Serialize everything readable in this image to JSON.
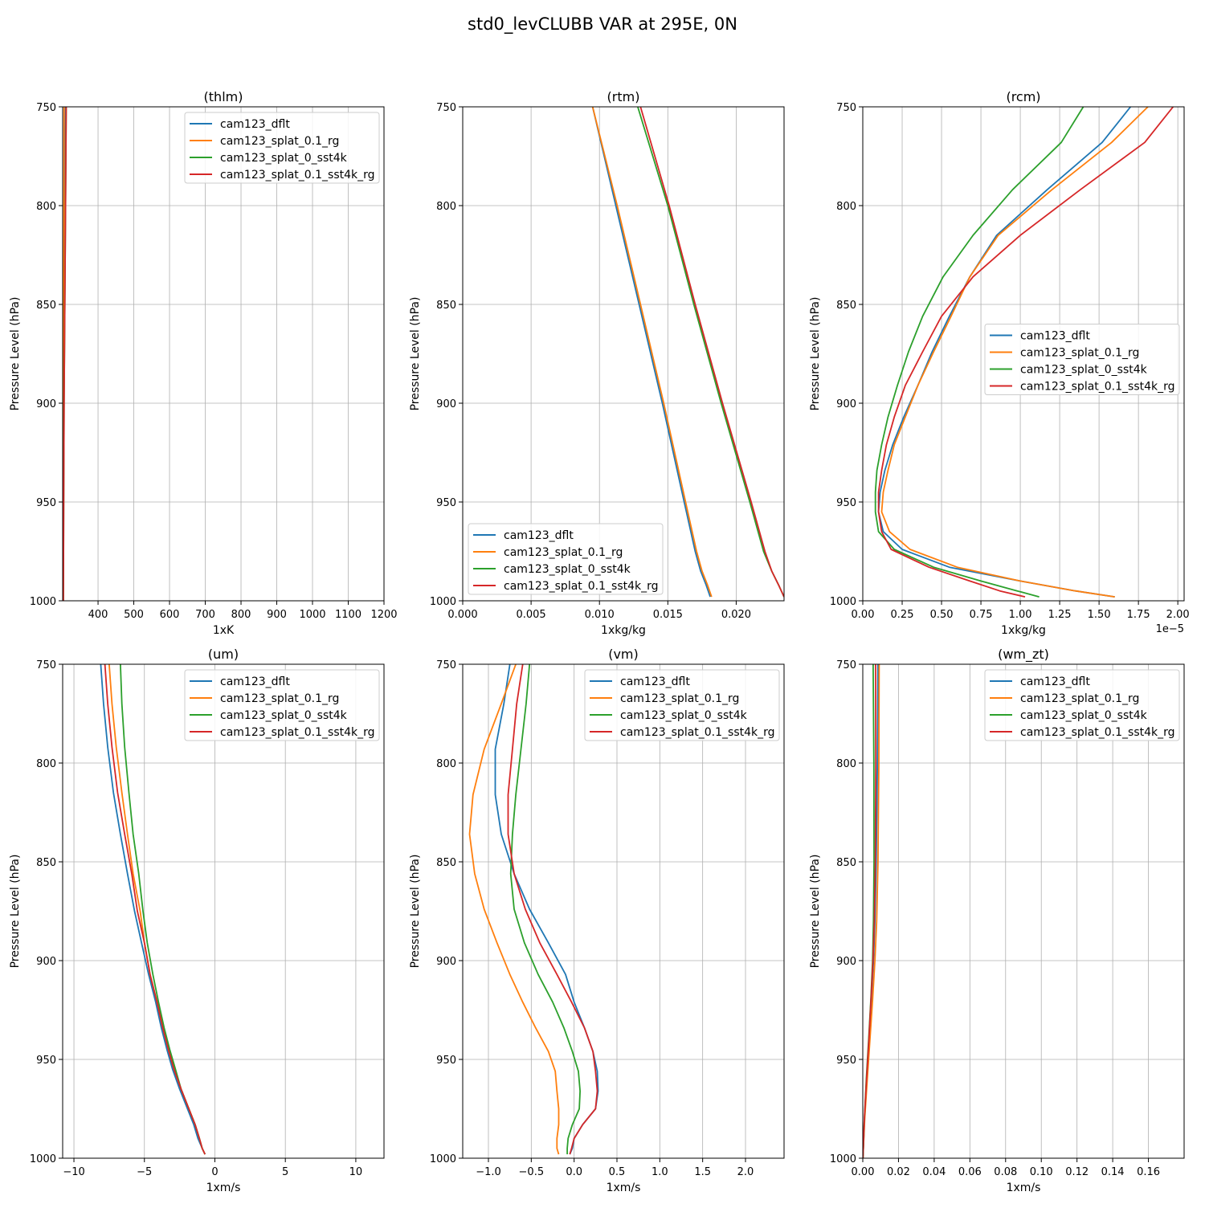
{
  "figure_title": "std0_levCLUBB VAR at 295E, 0N",
  "series_names": [
    "cam123_dflt",
    "cam123_splat_0.1_rg",
    "cam123_splat_0_sst4k",
    "cam123_splat_0.1_sst4k_rg"
  ],
  "series_colors": [
    "#1f77b4",
    "#ff7f0e",
    "#2ca02c",
    "#d62728"
  ],
  "chart_data": [
    {
      "type": "line",
      "title": "(thlm)",
      "xlabel": "1xK",
      "ylabel": "Pressure Level (hPa)",
      "xlim": [
        301,
        1200
      ],
      "ylim": [
        1000,
        750
      ],
      "xticks": [
        400,
        500,
        600,
        700,
        800,
        900,
        1000,
        1100,
        1200
      ],
      "xtick_labels": [
        "400",
        "500",
        "600",
        "700",
        "800",
        "900",
        "1000",
        "1100",
        "1200"
      ],
      "yticks": [
        750,
        800,
        850,
        900,
        950,
        1000
      ],
      "ytick_labels": [
        "750",
        "800",
        "850",
        "900",
        "950",
        "1000"
      ],
      "legend_loc": "upper right",
      "offset_label": "",
      "grid": true,
      "pressure": [
        750,
        800,
        850,
        900,
        950,
        1000
      ],
      "series": [
        {
          "name": "cam123_dflt",
          "values": [
            309,
            307,
            305,
            304,
            303,
            302
          ]
        },
        {
          "name": "cam123_splat_0.1_rg",
          "values": [
            305,
            304.5,
            304,
            303.5,
            303,
            302
          ]
        },
        {
          "name": "cam123_splat_0_sst4k",
          "values": [
            311,
            309,
            307,
            305,
            304,
            303
          ]
        },
        {
          "name": "cam123_splat_0.1_sst4k_rg",
          "values": [
            311,
            309,
            307,
            305,
            304,
            303
          ]
        }
      ]
    },
    {
      "type": "line",
      "title": "(rtm)",
      "xlabel": "1xkg/kg",
      "ylabel": "Pressure Level (hPa)",
      "xlim": [
        0,
        0.0235
      ],
      "ylim": [
        1000,
        750
      ],
      "xticks": [
        0,
        0.005,
        0.01,
        0.015,
        0.02
      ],
      "xtick_labels": [
        "0.000",
        "0.005",
        "0.010",
        "0.015",
        "0.020"
      ],
      "yticks": [
        750,
        800,
        850,
        900,
        950,
        1000
      ],
      "ytick_labels": [
        "750",
        "800",
        "850",
        "900",
        "950",
        "1000"
      ],
      "legend_loc": "lower left",
      "offset_label": "",
      "grid": true,
      "pressure": [
        750,
        800,
        850,
        900,
        950,
        975,
        985,
        992,
        998
      ],
      "series": [
        {
          "name": "cam123_dflt",
          "values": [
            0.0095,
            0.0112,
            0.0129,
            0.0146,
            0.0162,
            0.017,
            0.0174,
            0.0178,
            0.0181
          ]
        },
        {
          "name": "cam123_splat_0.1_rg",
          "values": [
            0.0095,
            0.0113,
            0.013,
            0.0147,
            0.0163,
            0.0171,
            0.0175,
            0.0179,
            0.0182
          ]
        },
        {
          "name": "cam123_splat_0_sst4k",
          "values": [
            0.0128,
            0.015,
            0.0169,
            0.0189,
            0.021,
            0.022,
            0.0226,
            0.0231,
            0.0235
          ]
        },
        {
          "name": "cam123_splat_0.1_sst4k_rg",
          "values": [
            0.013,
            0.0151,
            0.017,
            0.019,
            0.0211,
            0.0221,
            0.0226,
            0.0231,
            0.0235
          ]
        }
      ]
    },
    {
      "type": "line",
      "title": "(rcm)",
      "xlabel": "1xkg/kg",
      "ylabel": "Pressure Level (hPa)",
      "xlim": [
        0,
        2.04
      ],
      "ylim": [
        1000,
        750
      ],
      "xticks": [
        0,
        0.25,
        0.5,
        0.75,
        1.0,
        1.25,
        1.5,
        1.75,
        2.0
      ],
      "xtick_labels": [
        "0.00",
        "0.25",
        "0.50",
        "0.75",
        "1.00",
        "1.25",
        "1.50",
        "1.75",
        "2.00"
      ],
      "yticks": [
        750,
        800,
        850,
        900,
        950,
        1000
      ],
      "ytick_labels": [
        "750",
        "800",
        "850",
        "900",
        "950",
        "1000"
      ],
      "legend_loc": "center right",
      "offset_label": "1e−5",
      "grid": true,
      "pressure": [
        750,
        768,
        792,
        815,
        836,
        856,
        874,
        891,
        907,
        921,
        934,
        945,
        955,
        965,
        974,
        983,
        990,
        995,
        998
      ],
      "series": [
        {
          "name": "cam123_dflt",
          "values": [
            1.7,
            1.52,
            1.17,
            0.85,
            0.68,
            0.55,
            0.44,
            0.35,
            0.26,
            0.19,
            0.14,
            0.11,
            0.1,
            0.13,
            0.25,
            0.55,
            1.0,
            1.35,
            1.6
          ]
        },
        {
          "name": "cam123_splat_0.1_rg",
          "values": [
            1.81,
            1.58,
            1.2,
            0.86,
            0.68,
            0.56,
            0.45,
            0.35,
            0.27,
            0.2,
            0.16,
            0.13,
            0.12,
            0.17,
            0.3,
            0.6,
            1.0,
            1.35,
            1.6
          ]
        },
        {
          "name": "cam123_splat_0_sst4k",
          "values": [
            1.4,
            1.26,
            0.95,
            0.7,
            0.51,
            0.38,
            0.29,
            0.22,
            0.16,
            0.12,
            0.09,
            0.08,
            0.08,
            0.1,
            0.2,
            0.45,
            0.75,
            0.98,
            1.12
          ]
        },
        {
          "name": "cam123_splat_0.1_sst4k_rg",
          "values": [
            1.97,
            1.79,
            1.38,
            1.0,
            0.7,
            0.5,
            0.38,
            0.27,
            0.2,
            0.15,
            0.12,
            0.1,
            0.1,
            0.12,
            0.18,
            0.42,
            0.68,
            0.87,
            1.03
          ]
        }
      ]
    },
    {
      "type": "line",
      "title": "(um)",
      "xlabel": "1xm/s",
      "ylabel": "Pressure Level (hPa)",
      "xlim": [
        -10.8,
        12
      ],
      "ylim": [
        1000,
        750
      ],
      "xticks": [
        -10,
        -5,
        0,
        5,
        10
      ],
      "xtick_labels": [
        "−10",
        "−5",
        "0",
        "5",
        "10"
      ],
      "yticks": [
        750,
        800,
        850,
        900,
        950,
        1000
      ],
      "ytick_labels": [
        "750",
        "800",
        "850",
        "900",
        "950",
        "1000"
      ],
      "legend_loc": "upper right",
      "offset_label": "",
      "grid": true,
      "pressure": [
        750,
        770,
        792,
        815,
        836,
        856,
        875,
        891,
        907,
        921,
        934,
        945,
        955,
        965,
        974,
        983,
        990,
        995,
        998
      ],
      "series": [
        {
          "name": "cam123_dflt",
          "values": [
            -8.1,
            -7.9,
            -7.6,
            -7.2,
            -6.7,
            -6.2,
            -5.7,
            -5.2,
            -4.7,
            -4.2,
            -3.8,
            -3.4,
            -3.0,
            -2.5,
            -2.0,
            -1.5,
            -1.2,
            -0.9,
            -0.7
          ]
        },
        {
          "name": "cam123_splat_0.1_rg",
          "values": [
            -7.5,
            -7.3,
            -7.0,
            -6.6,
            -6.2,
            -5.8,
            -5.3,
            -5.0,
            -4.6,
            -4.1,
            -3.7,
            -3.3,
            -2.9,
            -2.4,
            -1.9,
            -1.4,
            -1.1,
            -0.9,
            -0.7
          ]
        },
        {
          "name": "cam123_splat_0_sst4k",
          "values": [
            -6.7,
            -6.6,
            -6.4,
            -6.1,
            -5.8,
            -5.4,
            -5.1,
            -4.8,
            -4.4,
            -4.0,
            -3.6,
            -3.2,
            -2.8,
            -2.4,
            -1.9,
            -1.4,
            -1.1,
            -0.9,
            -0.7
          ]
        },
        {
          "name": "cam123_splat_0.1_sst4k_rg",
          "values": [
            -7.8,
            -7.6,
            -7.3,
            -6.9,
            -6.4,
            -5.9,
            -5.5,
            -5.0,
            -4.6,
            -4.1,
            -3.7,
            -3.3,
            -2.9,
            -2.4,
            -1.9,
            -1.4,
            -1.1,
            -0.9,
            -0.7
          ]
        }
      ]
    },
    {
      "type": "line",
      "title": "(vm)",
      "xlabel": "1xm/s",
      "ylabel": "Pressure Level (hPa)",
      "xlim": [
        -1.3,
        2.45
      ],
      "ylim": [
        1000,
        750
      ],
      "xticks": [
        -1.0,
        -0.5,
        0.0,
        0.5,
        1.0,
        1.5,
        2.0
      ],
      "xtick_labels": [
        "−1.0",
        "−0.5",
        "0.0",
        "0.5",
        "1.0",
        "1.5",
        "2.0"
      ],
      "yticks": [
        750,
        800,
        850,
        900,
        950,
        1000
      ],
      "ytick_labels": [
        "750",
        "800",
        "850",
        "900",
        "950",
        "1000"
      ],
      "legend_loc": "upper right",
      "offset_label": "",
      "grid": true,
      "pressure": [
        750,
        770,
        793,
        816,
        836,
        856,
        874,
        891,
        907,
        921,
        934,
        946,
        956,
        966,
        975,
        983,
        990,
        995,
        998
      ],
      "series": [
        {
          "name": "cam123_dflt",
          "values": [
            -0.75,
            -0.82,
            -0.92,
            -0.92,
            -0.85,
            -0.7,
            -0.52,
            -0.3,
            -0.1,
            0.0,
            0.12,
            0.22,
            0.27,
            0.28,
            0.25,
            0.1,
            0.0,
            -0.02,
            -0.05
          ]
        },
        {
          "name": "cam123_splat_0.1_rg",
          "values": [
            -0.68,
            -0.85,
            -1.05,
            -1.18,
            -1.22,
            -1.16,
            -1.05,
            -0.9,
            -0.75,
            -0.6,
            -0.45,
            -0.3,
            -0.22,
            -0.2,
            -0.18,
            -0.18,
            -0.2,
            -0.2,
            -0.18
          ]
        },
        {
          "name": "cam123_splat_0_sst4k",
          "values": [
            -0.52,
            -0.56,
            -0.62,
            -0.68,
            -0.72,
            -0.74,
            -0.7,
            -0.58,
            -0.42,
            -0.25,
            -0.12,
            -0.02,
            0.05,
            0.07,
            0.06,
            -0.02,
            -0.07,
            -0.08,
            -0.08
          ]
        },
        {
          "name": "cam123_splat_0.1_sst4k_rg",
          "values": [
            -0.6,
            -0.67,
            -0.72,
            -0.77,
            -0.77,
            -0.7,
            -0.57,
            -0.4,
            -0.2,
            -0.03,
            0.12,
            0.22,
            0.25,
            0.27,
            0.25,
            0.1,
            0.0,
            -0.03,
            -0.05
          ]
        }
      ]
    },
    {
      "type": "line",
      "title": "(wm_zt)",
      "xlabel": "1xm/s",
      "ylabel": "Pressure Level (hPa)",
      "xlim": [
        0,
        0.18
      ],
      "ylim": [
        1000,
        750
      ],
      "xticks": [
        0,
        0.02,
        0.04,
        0.06,
        0.08,
        0.1,
        0.12,
        0.14,
        0.16
      ],
      "xtick_labels": [
        "0.00",
        "0.02",
        "0.04",
        "0.06",
        "0.08",
        "0.10",
        "0.12",
        "0.14",
        "0.16"
      ],
      "yticks": [
        750,
        800,
        850,
        900,
        950,
        1000
      ],
      "ytick_labels": [
        "750",
        "800",
        "850",
        "900",
        "950",
        "1000"
      ],
      "legend_loc": "upper right",
      "offset_label": "",
      "grid": true,
      "pressure": [
        750,
        800,
        850,
        880,
        900,
        920,
        940,
        960,
        980,
        1000
      ],
      "series": [
        {
          "name": "cam123_dflt",
          "values": [
            0.0085,
            0.0082,
            0.0075,
            0.0068,
            0.006,
            0.0048,
            0.0035,
            0.0022,
            0.001,
            0.0001
          ]
        },
        {
          "name": "cam123_splat_0.1_rg",
          "values": [
            0.0092,
            0.009,
            0.0085,
            0.0078,
            0.0068,
            0.0055,
            0.004,
            0.0025,
            0.0011,
            0.0001
          ]
        },
        {
          "name": "cam123_splat_0_sst4k",
          "values": [
            0.0058,
            0.0062,
            0.0063,
            0.006,
            0.0055,
            0.0045,
            0.0033,
            0.002,
            0.0009,
            0.0001
          ]
        },
        {
          "name": "cam123_splat_0.1_sst4k_rg",
          "values": [
            0.0072,
            0.0073,
            0.007,
            0.0065,
            0.0057,
            0.0046,
            0.0034,
            0.0021,
            0.0009,
            0.0001
          ]
        }
      ]
    }
  ]
}
